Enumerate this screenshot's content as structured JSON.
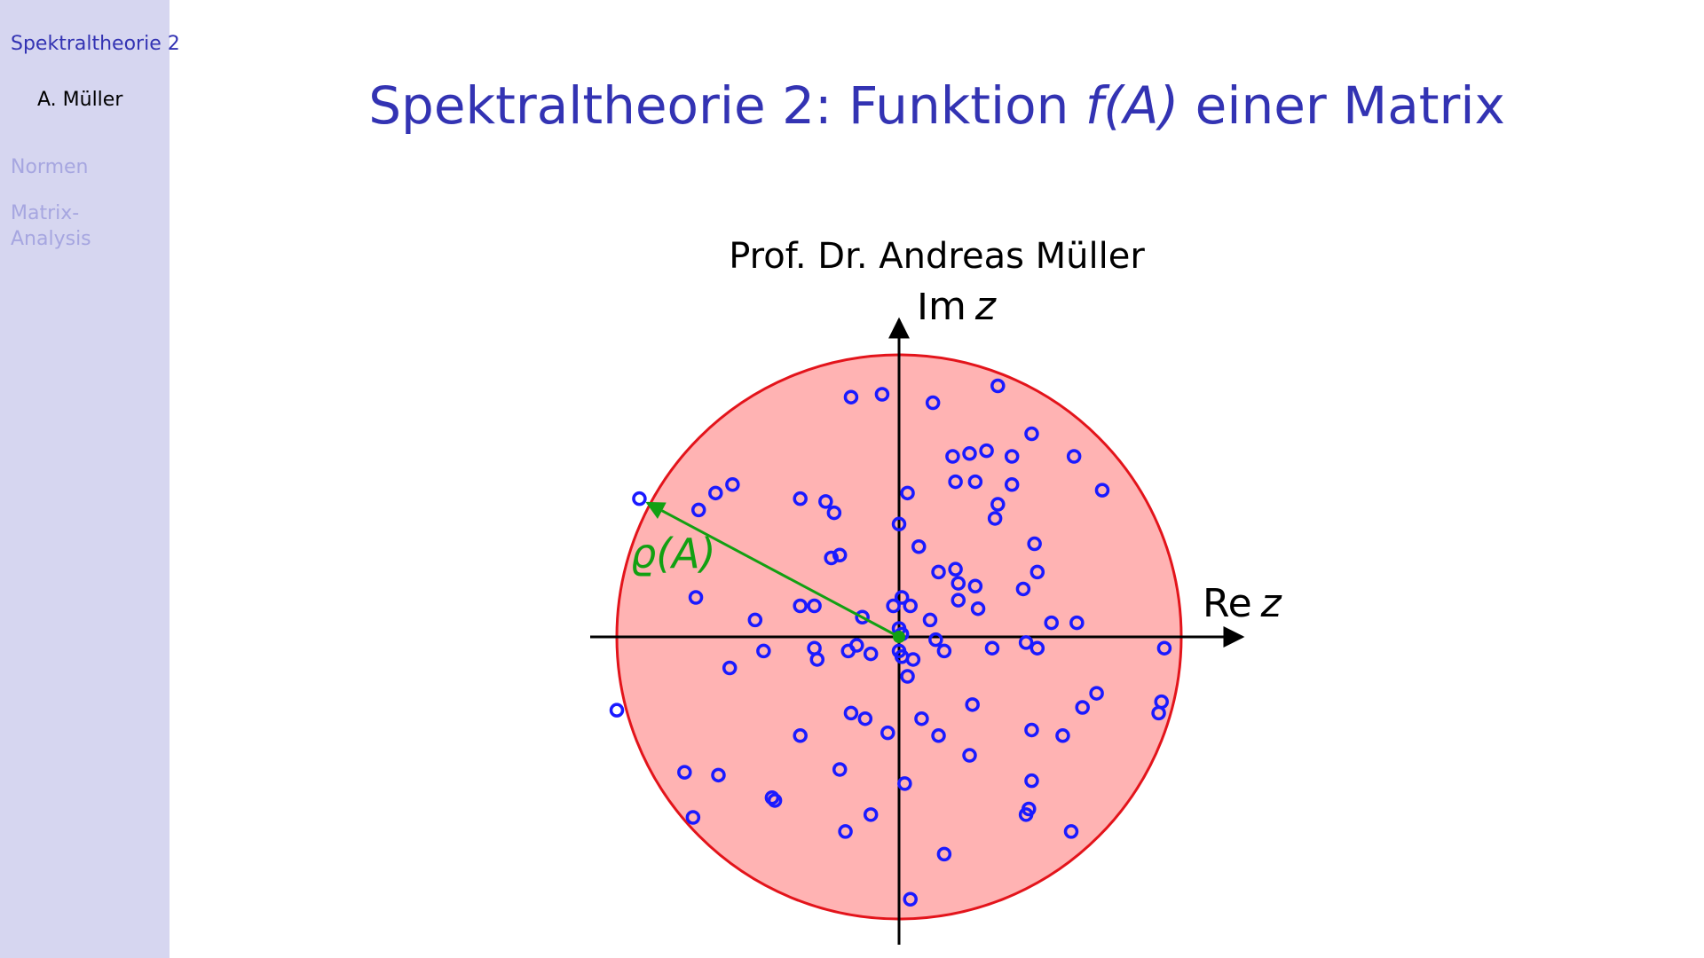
{
  "sidebar": {
    "title": "Spektraltheorie 2",
    "author": "A. Müller",
    "nav": [
      {
        "label": "Normen"
      },
      {
        "label": "Matrix-Analysis"
      }
    ]
  },
  "slide": {
    "title_prefix": "Spektraltheorie 2: Funktion ",
    "title_math": "f(A)",
    "title_suffix": " einer Matrix",
    "author": "Prof. Dr. Andreas Müller"
  },
  "colors": {
    "accent": "#3333b3",
    "sidebar_bg": "#d6d6f0",
    "sidebar_inactive": "#a6a6e0",
    "disk_fill": "#ffb3b3",
    "disk_stroke": "#e3141b",
    "eigenvalue": "#1a1aff",
    "radius_arrow": "#12a012"
  },
  "diagram": {
    "axis_labels": {
      "re": "Re",
      "im": "Im",
      "var": "z"
    },
    "radius_label": "ϱ(A)",
    "spectral_radius": 1.0,
    "eigenvalues": [
      [
        0.35,
        0.89
      ],
      [
        -0.17,
        0.85
      ],
      [
        -0.06,
        0.86
      ],
      [
        0.12,
        0.83
      ],
      [
        0.47,
        0.72
      ],
      [
        0.4,
        0.64
      ],
      [
        0.31,
        0.66
      ],
      [
        0.25,
        0.65
      ],
      [
        0.19,
        0.64
      ],
      [
        0.2,
        0.55
      ],
      [
        0.27,
        0.55
      ],
      [
        0.4,
        0.54
      ],
      [
        0.72,
        0.52
      ],
      [
        0.62,
        0.64
      ],
      [
        0.35,
        0.47
      ],
      [
        0.34,
        0.42
      ],
      [
        0.03,
        0.51
      ],
      [
        -0.35,
        0.49
      ],
      [
        -0.26,
        0.48
      ],
      [
        -0.23,
        0.44
      ],
      [
        -0.92,
        0.49
      ],
      [
        -0.71,
        0.45
      ],
      [
        -0.65,
        0.51
      ],
      [
        -0.59,
        0.54
      ],
      [
        0.0,
        0.4
      ],
      [
        0.07,
        0.32
      ],
      [
        -0.24,
        0.28
      ],
      [
        -0.21,
        0.29
      ],
      [
        0.48,
        0.33
      ],
      [
        0.49,
        0.23
      ],
      [
        0.44,
        0.17
      ],
      [
        0.14,
        0.23
      ],
      [
        0.2,
        0.24
      ],
      [
        0.21,
        0.19
      ],
      [
        0.27,
        0.18
      ],
      [
        0.21,
        0.13
      ],
      [
        0.28,
        0.1
      ],
      [
        -0.72,
        0.14
      ],
      [
        -0.35,
        0.11
      ],
      [
        -0.3,
        0.11
      ],
      [
        -0.13,
        0.07
      ],
      [
        0.01,
        0.14
      ],
      [
        -0.02,
        0.11
      ],
      [
        0.04,
        0.11
      ],
      [
        0.11,
        0.06
      ],
      [
        0.54,
        0.05
      ],
      [
        0.63,
        0.05
      ],
      [
        0.0,
        0.03
      ],
      [
        0.01,
        0.01
      ],
      [
        -0.51,
        0.06
      ],
      [
        -0.48,
        -0.05
      ],
      [
        -0.3,
        -0.04
      ],
      [
        -0.29,
        -0.08
      ],
      [
        -0.18,
        -0.05
      ],
      [
        -0.15,
        -0.03
      ],
      [
        -0.1,
        -0.06
      ],
      [
        0.0,
        -0.05
      ],
      [
        0.01,
        -0.07
      ],
      [
        0.05,
        -0.08
      ],
      [
        0.13,
        -0.01
      ],
      [
        0.16,
        -0.05
      ],
      [
        0.33,
        -0.04
      ],
      [
        0.45,
        -0.02
      ],
      [
        0.49,
        -0.04
      ],
      [
        0.94,
        -0.04
      ],
      [
        -0.6,
        -0.11
      ],
      [
        0.03,
        -0.14
      ],
      [
        -1.0,
        -0.26
      ],
      [
        -0.17,
        -0.27
      ],
      [
        -0.12,
        -0.29
      ],
      [
        0.08,
        -0.29
      ],
      [
        -0.04,
        -0.34
      ],
      [
        -0.35,
        -0.35
      ],
      [
        0.14,
        -0.35
      ],
      [
        0.25,
        -0.42
      ],
      [
        0.26,
        -0.24
      ],
      [
        0.47,
        -0.33
      ],
      [
        0.58,
        -0.35
      ],
      [
        0.65,
        -0.25
      ],
      [
        0.7,
        -0.2
      ],
      [
        0.93,
        -0.23
      ],
      [
        0.92,
        -0.27
      ],
      [
        -0.76,
        -0.48
      ],
      [
        -0.64,
        -0.49
      ],
      [
        -0.21,
        -0.47
      ],
      [
        0.02,
        -0.52
      ],
      [
        0.47,
        -0.51
      ],
      [
        -0.45,
        -0.57
      ],
      [
        -0.44,
        -0.58
      ],
      [
        -0.1,
        -0.63
      ],
      [
        -0.19,
        -0.69
      ],
      [
        0.45,
        -0.63
      ],
      [
        0.46,
        -0.61
      ],
      [
        0.61,
        -0.69
      ],
      [
        -0.73,
        -0.64
      ],
      [
        0.16,
        -0.77
      ],
      [
        0.04,
        -0.93
      ]
    ]
  }
}
